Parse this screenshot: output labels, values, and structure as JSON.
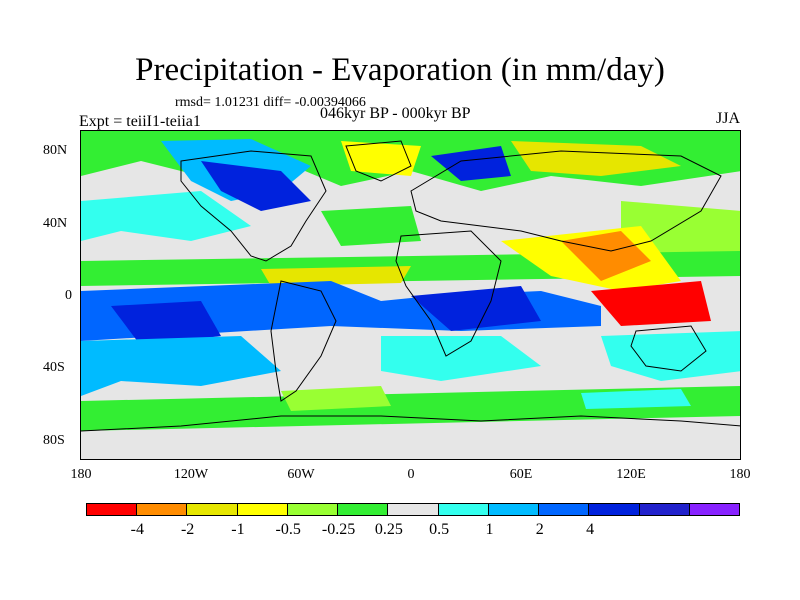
{
  "title": "Precipitation - Evaporation (in mm/day)",
  "stats": "rmsd= 1.01231 diff= -0.00394066",
  "experiment": "Expt = teiiI1-teiia1",
  "period": "046kyr BP - 000kyr BP",
  "season": "JJA",
  "latitude_labels": [
    "80N",
    "40N",
    "0",
    "40S",
    "80S"
  ],
  "longitude_labels": [
    "180",
    "120W",
    "60W",
    "0",
    "60E",
    "120E",
    "180"
  ],
  "colorbar": {
    "colors": [
      "#ff0000",
      "#ff8c00",
      "#e6e600",
      "#ffff00",
      "#99ff33",
      "#33ee33",
      "#e6e6e6",
      "#33ffee",
      "#00bbff",
      "#0066ff",
      "#0022dd",
      "#2222cc",
      "#8822ff"
    ],
    "labels": [
      "-4",
      "-2",
      "-1",
      "-0.5",
      "-0.25",
      "0.25",
      "0.5",
      "1",
      "2",
      "4"
    ]
  },
  "chart_data": {
    "type": "heatmap",
    "title": "Precipitation - Evaporation (in mm/day)",
    "subtitle": "046kyr BP - 000kyr BP",
    "xlabel": "",
    "ylabel": "",
    "xlim": [
      -180,
      180
    ],
    "ylim": [
      -90,
      90
    ],
    "x_ticks": [
      "180",
      "120W",
      "60W",
      "0",
      "60E",
      "120E",
      "180"
    ],
    "y_ticks": [
      "80N",
      "40N",
      "0",
      "40S",
      "80S"
    ],
    "contour_levels": [
      -4,
      -2,
      -1,
      -0.5,
      -0.25,
      0.25,
      0.5,
      1,
      2,
      4
    ]
  }
}
